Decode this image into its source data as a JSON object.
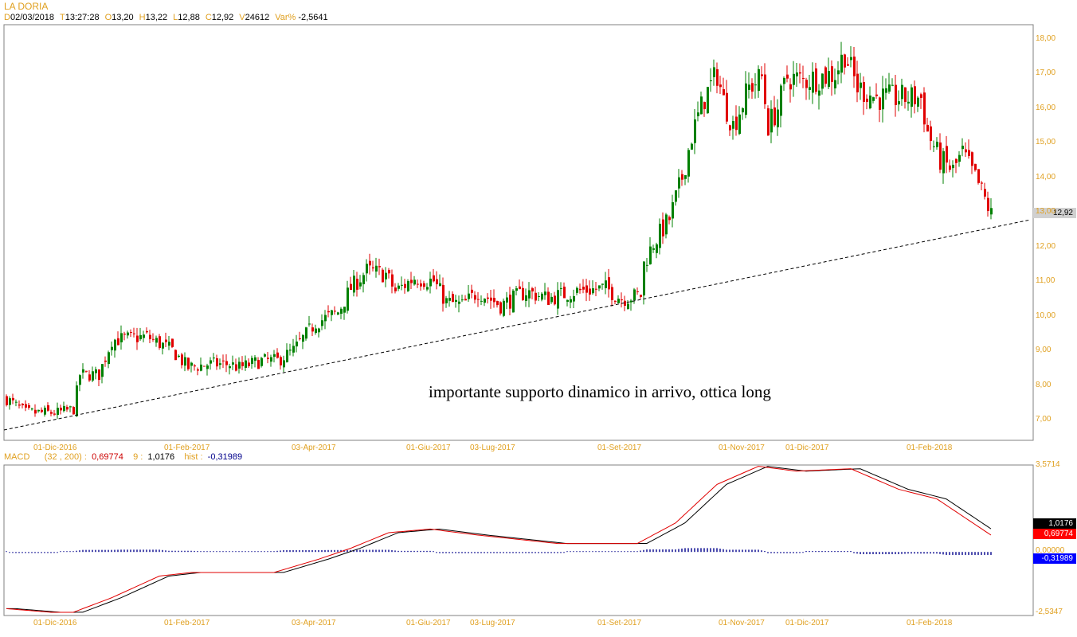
{
  "header": {
    "title": "LA DORIA",
    "fields": [
      {
        "label": "D",
        "value": "02/03/2018"
      },
      {
        "label": "T",
        "value": "13:27:28"
      },
      {
        "label": "O",
        "value": "13,20"
      },
      {
        "label": "H",
        "value": "13,22"
      },
      {
        "label": "L",
        "value": "12,88"
      },
      {
        "label": "C",
        "value": "12,92"
      },
      {
        "label": "V",
        "value": "24612"
      },
      {
        "label": "Var%",
        "value": "-2,5641"
      }
    ]
  },
  "annotation": "importante supporto dinamico in arrivo, ottica long",
  "macd_header": {
    "name": "MACD",
    "params": "(32 , 200) :",
    "macd": "0,69774",
    "signal_label": "9 :",
    "signal": "1,0176",
    "hist_label": "hist :",
    "hist": "-0,31989"
  },
  "colors": {
    "up": "#008000",
    "down": "#e00000",
    "macd": "#e00000",
    "signal": "#000000",
    "hist": "#00008b",
    "axis_text": "#e0a020"
  },
  "chart_data": [
    {
      "type": "candlestick",
      "title": "LA DORIA",
      "x_ticks": [
        {
          "label": "01-Dic-2016",
          "idx": 16
        },
        {
          "label": "01-Feb-2017",
          "idx": 57
        },
        {
          "label": "03-Apr-2017",
          "idx": 97
        },
        {
          "label": "01-Giu-2017",
          "idx": 133
        },
        {
          "label": "03-Lug-2017",
          "idx": 153
        },
        {
          "label": "01-Set-2017",
          "idx": 193
        },
        {
          "label": "01-Nov-2017",
          "idx": 231
        },
        {
          "label": "01-Dic-2017",
          "idx": 252
        },
        {
          "label": "01-Feb-2018",
          "idx": 290
        }
      ],
      "y_ticks": [
        "7,00",
        "8,00",
        "9,00",
        "10,00",
        "11,00",
        "12,00",
        "13,00",
        "14,00",
        "15,00",
        "16,00",
        "17,00",
        "18,00"
      ],
      "ylim": [
        6.6,
        18.4
      ],
      "last_price": "12,92",
      "n_candles": 310,
      "close_path": [
        [
          0,
          7.6
        ],
        [
          6,
          7.2
        ],
        [
          16,
          7.2
        ],
        [
          21,
          7.3
        ],
        [
          23,
          8.3
        ],
        [
          29,
          8.3
        ],
        [
          33,
          9.3
        ],
        [
          44,
          9.4
        ],
        [
          52,
          9.0
        ],
        [
          57,
          8.5
        ],
        [
          63,
          8.6
        ],
        [
          70,
          8.6
        ],
        [
          73,
          8.5
        ],
        [
          80,
          8.7
        ],
        [
          85,
          8.7
        ],
        [
          90,
          9.0
        ],
        [
          97,
          9.8
        ],
        [
          104,
          10.1
        ],
        [
          108,
          10.8
        ],
        [
          113,
          11.3
        ],
        [
          119,
          11.2
        ],
        [
          122,
          10.7
        ],
        [
          128,
          11.1
        ],
        [
          134,
          11.0
        ],
        [
          138,
          10.4
        ],
        [
          143,
          10.3
        ],
        [
          148,
          10.7
        ],
        [
          155,
          10.3
        ],
        [
          163,
          10.7
        ],
        [
          170,
          10.5
        ],
        [
          178,
          10.7
        ],
        [
          188,
          10.8
        ],
        [
          193,
          10.5
        ],
        [
          199,
          10.6
        ],
        [
          200,
          11.5
        ],
        [
          203,
          12.1
        ],
        [
          208,
          12.8
        ],
        [
          212,
          14.0
        ],
        [
          215,
          15.2
        ],
        [
          219,
          16.3
        ],
        [
          223,
          17.0
        ],
        [
          225,
          16.2
        ],
        [
          228,
          15.5
        ],
        [
          233,
          16.6
        ],
        [
          237,
          16.9
        ],
        [
          239,
          15.5
        ],
        [
          242,
          16.0
        ],
        [
          245,
          16.9
        ],
        [
          250,
          16.8
        ],
        [
          255,
          16.9
        ],
        [
          260,
          17.0
        ],
        [
          263,
          17.6
        ],
        [
          267,
          16.6
        ],
        [
          273,
          16.3
        ],
        [
          281,
          16.3
        ],
        [
          287,
          16.3
        ],
        [
          289,
          15.3
        ],
        [
          293,
          14.5
        ],
        [
          297,
          14.2
        ],
        [
          300,
          14.7
        ],
        [
          305,
          13.8
        ],
        [
          309,
          12.92
        ]
      ],
      "trendline": {
        "start": [
          0,
          6.7
        ],
        "end": [
          320,
          12.75
        ],
        "style": "dashed"
      }
    },
    {
      "type": "line",
      "title": "MACD (32 , 200)",
      "y_ticks": [
        "3,5714",
        "0,00000",
        "-2,5347"
      ],
      "ylim": [
        -2.5347,
        3.5714
      ],
      "series": [
        {
          "name": "MACD",
          "last": "0,69774",
          "path": [
            [
              0,
              -2.35
            ],
            [
              14,
              -2.5
            ],
            [
              21,
              -2.5
            ],
            [
              33,
              -1.9
            ],
            [
              48,
              -1.0
            ],
            [
              58,
              -0.85
            ],
            [
              84,
              -0.85
            ],
            [
              98,
              -0.3
            ],
            [
              108,
              0.15
            ],
            [
              120,
              0.8
            ],
            [
              133,
              0.95
            ],
            [
              148,
              0.7
            ],
            [
              173,
              0.35
            ],
            [
              198,
              0.35
            ],
            [
              210,
              1.2
            ],
            [
              223,
              2.8
            ],
            [
              236,
              3.55
            ],
            [
              248,
              3.35
            ],
            [
              265,
              3.45
            ],
            [
              280,
              2.6
            ],
            [
              292,
              2.2
            ],
            [
              309,
              0.7
            ]
          ]
        },
        {
          "name": "Signal 9",
          "last": "1,0176",
          "lag": 3
        },
        {
          "name": "hist",
          "last": "-0,31989"
        }
      ]
    }
  ]
}
